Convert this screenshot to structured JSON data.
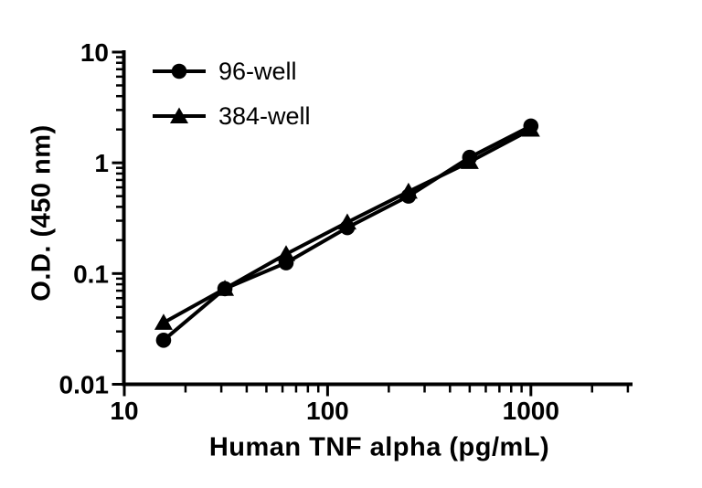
{
  "figure": {
    "background_color": "#ffffff",
    "foreground_color": "#000000"
  },
  "chart_data": {
    "type": "line",
    "title": "",
    "xlabel": "Human TNF alpha (pg/mL)",
    "ylabel": "O.D. (450 nm)",
    "x_scale": "log",
    "y_scale": "log",
    "x_range": [
      10,
      3000
    ],
    "y_range": [
      0.01,
      10
    ],
    "x_major_ticks": [
      10,
      100,
      1000
    ],
    "x_major_tick_labels": [
      "10",
      "100",
      "1000"
    ],
    "y_major_ticks": [
      0.01,
      0.1,
      1,
      10
    ],
    "y_major_tick_labels": [
      "0.01",
      "0.1",
      "1",
      "10"
    ],
    "grid": false,
    "legend_position": "inside-top-left",
    "x": [
      15.6,
      31.25,
      62.5,
      125,
      250,
      500,
      1000
    ],
    "series": [
      {
        "name": "96-well",
        "marker": "circle",
        "color": "#000000",
        "values": [
          0.025,
          0.073,
          0.125,
          0.26,
          0.5,
          1.12,
          2.15
        ]
      },
      {
        "name": "384-well",
        "marker": "triangle",
        "color": "#000000",
        "values": [
          0.036,
          0.073,
          0.15,
          0.29,
          0.55,
          1.02,
          2.0
        ]
      }
    ]
  }
}
